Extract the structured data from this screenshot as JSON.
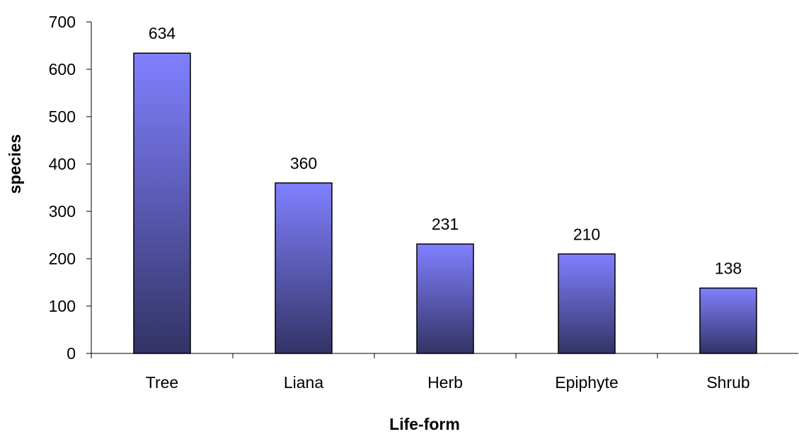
{
  "chart_data": {
    "type": "bar",
    "title": "",
    "xlabel": "Life-form",
    "ylabel": "species",
    "categories": [
      "Tree",
      "Liana",
      "Herb",
      "Epiphyte",
      "Shrub"
    ],
    "values": [
      634,
      360,
      231,
      210,
      138
    ],
    "data_labels": [
      "634",
      "360",
      "231",
      "210",
      "138"
    ],
    "ylim": [
      0,
      700
    ],
    "yticks": [
      0,
      100,
      200,
      300,
      400,
      500,
      600,
      700
    ],
    "grid": false,
    "legend": "none",
    "colors": {
      "bar_top": "#8080ff",
      "bar_bottom": "#333366",
      "bar_outline": "#000000",
      "axis": "#000000"
    }
  }
}
